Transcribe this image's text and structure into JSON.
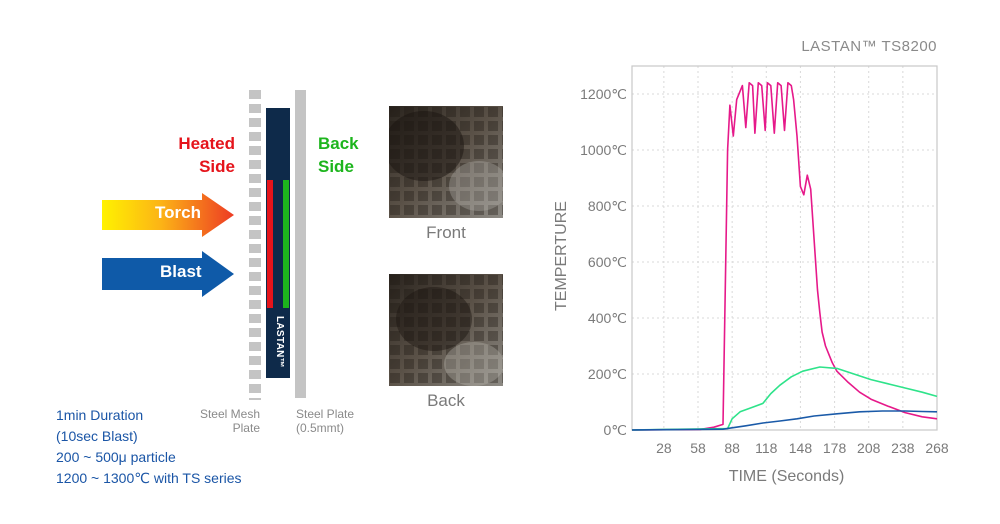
{
  "diagram": {
    "heated_side": [
      "Heated",
      "Side"
    ],
    "back_side": [
      "Back",
      "Side"
    ],
    "torch_label": "Torch",
    "blast_label": "Blast",
    "lastan_label": "LASTAN™",
    "steel_mesh_caption": [
      "Steel Mesh",
      "Plate"
    ],
    "steel_plate_caption": [
      "Steel Plate",
      "(0.5mmt)"
    ],
    "bullets": [
      "1min Duration",
      "(10sec Blast)",
      "200 ~ 500μ particle",
      "1200 ~ 1300℃ with TS series"
    ],
    "colors": {
      "heated": "#e5141b",
      "back": "#1db51d",
      "blast": "#0f5aa8",
      "lastan": "#0e2a4a",
      "bullets": "#1a55a6"
    }
  },
  "photos": {
    "front_caption": "Front",
    "back_caption": "Back"
  },
  "chart_data": {
    "type": "line",
    "title": "LASTAN™ TS8200",
    "xlabel": "TIME (Seconds)",
    "ylabel": "TEMPERTURE",
    "xlim": [
      0,
      268
    ],
    "ylim": [
      0,
      1300
    ],
    "x_ticks": [
      28,
      58,
      88,
      118,
      148,
      178,
      208,
      238,
      268
    ],
    "y_ticks": [
      0,
      200,
      400,
      600,
      800,
      1000,
      1200
    ],
    "y_tick_labels": [
      "0℃",
      "200℃",
      "400℃",
      "600℃",
      "800℃",
      "1000℃",
      "1200℃"
    ],
    "grid": true,
    "series": [
      {
        "color": "#e6198a",
        "x": [
          0,
          60,
          72,
          80,
          84,
          86,
          89,
          92,
          95,
          97,
          100,
          103,
          106,
          108,
          111,
          114,
          117,
          119,
          122,
          125,
          128,
          131,
          134,
          137,
          140,
          142,
          145,
          148,
          151,
          154,
          157,
          160,
          163,
          165,
          167,
          170,
          173,
          176,
          180,
          190,
          200,
          210,
          225,
          240,
          255,
          268
        ],
        "y": [
          0,
          2,
          10,
          20,
          1000,
          1160,
          1050,
          1180,
          1210,
          1230,
          1080,
          1240,
          1230,
          1060,
          1240,
          1230,
          1070,
          1240,
          1230,
          1060,
          1240,
          1230,
          1070,
          1240,
          1230,
          1180,
          1050,
          870,
          840,
          910,
          860,
          680,
          500,
          420,
          350,
          300,
          270,
          240,
          210,
          170,
          135,
          110,
          85,
          62,
          47,
          40
        ]
      },
      {
        "color": "#2ee38a",
        "x": [
          0,
          84,
          88,
          95,
          105,
          115,
          122,
          130,
          140,
          150,
          165,
          180,
          195,
          210,
          225,
          240,
          255,
          268
        ],
        "y": [
          0,
          5,
          40,
          65,
          80,
          95,
          130,
          160,
          190,
          210,
          225,
          220,
          200,
          180,
          165,
          150,
          135,
          120
        ]
      },
      {
        "color": "#1a5aa8",
        "x": [
          0,
          80,
          88,
          100,
          115,
          130,
          145,
          160,
          180,
          200,
          220,
          240,
          255,
          268
        ],
        "y": [
          0,
          3,
          8,
          15,
          25,
          32,
          40,
          50,
          58,
          65,
          68,
          68,
          66,
          65
        ]
      }
    ]
  }
}
